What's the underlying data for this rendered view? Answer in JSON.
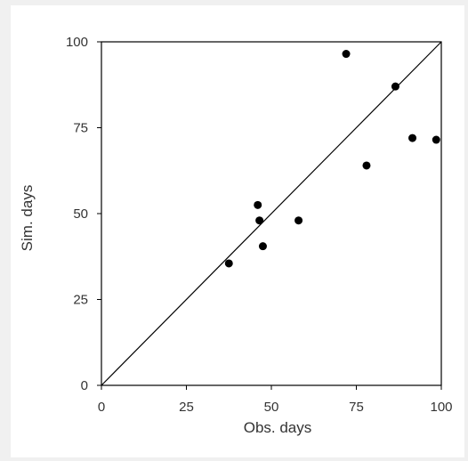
{
  "chart_data": {
    "type": "scatter",
    "title": "",
    "xlabel": "Obs. days",
    "ylabel": "Sim. days",
    "xlim": [
      0,
      100
    ],
    "ylim": [
      0,
      100
    ],
    "x_ticks": [
      "0",
      "25",
      "50",
      "75",
      "100"
    ],
    "y_ticks": [
      "0",
      "25",
      "50",
      "75",
      "100"
    ],
    "grid": false,
    "legend": "none",
    "reference_line": "1:1",
    "series": [
      {
        "points": [
          {
            "x": 37.5,
            "y": 35.5
          },
          {
            "x": 46,
            "y": 52.5
          },
          {
            "x": 46.5,
            "y": 48
          },
          {
            "x": 47.5,
            "y": 40.5
          },
          {
            "x": 58,
            "y": 48
          },
          {
            "x": 72,
            "y": 96.5
          },
          {
            "x": 78,
            "y": 64
          },
          {
            "x": 86.5,
            "y": 87
          },
          {
            "x": 91.5,
            "y": 72
          },
          {
            "x": 98.5,
            "y": 71.5
          }
        ]
      }
    ],
    "colors": {
      "axis": "#000000",
      "points": "#000000",
      "reference_line": "#000000",
      "text": "#333333",
      "background": "#ffffff",
      "outer_background": "#f0f0f0"
    }
  }
}
